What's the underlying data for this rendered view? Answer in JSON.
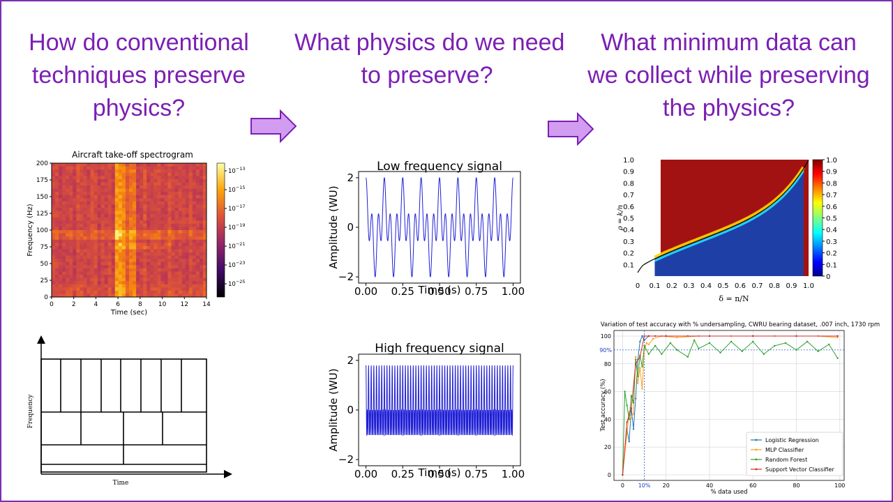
{
  "slide": {
    "question1": [
      "How do conventional",
      "techniques preserve",
      "physics?"
    ],
    "question2": [
      "What physics do we need",
      "to preserve?"
    ],
    "question3": [
      "What minimum data can",
      "we collect while preserving",
      "the physics?"
    ],
    "accent_color": "#7b1fb4",
    "arrow_color": "#d29cf0"
  },
  "spectrogram": {
    "title": "Aircraft take-off spectrogram",
    "xlabel": "Time (sec)",
    "ylabel": "Frequency (Hz)",
    "x_ticks": [
      "0",
      "2",
      "4",
      "6",
      "8",
      "10",
      "12",
      "14"
    ],
    "y_ticks": [
      "0",
      "25",
      "50",
      "75",
      "100",
      "125",
      "150",
      "175",
      "200"
    ],
    "colorbar_ticks": [
      "10",
      "10",
      "10",
      "10",
      "10",
      "10",
      "10"
    ],
    "colorbar_exponents": [
      "−13",
      "−15",
      "−17",
      "−19",
      "−21",
      "−23",
      "−25"
    ]
  },
  "tf_tiling": {
    "xlabel": "Time",
    "ylabel": "Frequency"
  },
  "low_signal": {
    "title": "Low frequency signal",
    "xlabel": "Time (s)",
    "ylabel": "Amplitude (WU)",
    "x_ticks": [
      "0.00",
      "0.25",
      "0.50",
      "0.75",
      "1.00"
    ],
    "y_ticks": [
      "2",
      "0",
      "−2"
    ]
  },
  "high_signal": {
    "title": "High frequency signal",
    "xlabel": "Time (s)",
    "ylabel": "Amplitude (WU)",
    "x_ticks": [
      "0.00",
      "0.25",
      "0.50",
      "0.75",
      "1.00"
    ],
    "y_ticks": [
      "2",
      "0",
      "−2"
    ]
  },
  "phase": {
    "ylabel": "ρ = k/n",
    "xlabel": "δ = n/N",
    "y_ticks": [
      "1.0",
      "0.9",
      "0.8",
      "0.7",
      "0.6",
      "0.5",
      "0.4",
      "0.3",
      "0.2",
      "0.1"
    ],
    "x_ticks": [
      "0",
      "0.1",
      "0.2",
      "0.3",
      "0.4",
      "0.5",
      "0.6",
      "0.7",
      "0.8",
      "0.9",
      "1.0"
    ],
    "colorbar_ticks": [
      "1.0",
      "0.9",
      "0.8",
      "0.7",
      "0.6",
      "0.5",
      "0.4",
      "0.3",
      "0.2",
      "0.1",
      "0"
    ]
  },
  "chart_data": [
    {
      "type": "line",
      "title": "Variation of test accuracy with % undersampling, CWRU bearing dataset, .007 inch, 1730 rpm",
      "xlabel": "% data used",
      "ylabel": "Test accuracy (%)",
      "xlim": [
        -4,
        102
      ],
      "ylim": [
        -4,
        104
      ],
      "x_ticks": [
        "0",
        "20",
        "40",
        "60",
        "80",
        "100"
      ],
      "y_ticks": [
        "0",
        "20",
        "40",
        "60",
        "80",
        "100"
      ],
      "grid": true,
      "legend_position": "bottom-right",
      "annotations": [
        {
          "label": "90%",
          "axis": "y",
          "value": 90
        },
        {
          "label": "10%",
          "axis": "x",
          "value": 10
        }
      ],
      "series": [
        {
          "name": "Logistic Regression",
          "color": "#1f77b4",
          "x": [
            0,
            2,
            3,
            4,
            5,
            6,
            7,
            8,
            9,
            10,
            12,
            15,
            20,
            30,
            40,
            60,
            80,
            99
          ],
          "y": [
            0,
            33,
            24,
            48,
            33,
            55,
            83,
            96,
            100,
            97,
            100,
            100,
            100,
            100,
            100,
            100,
            100,
            100
          ]
        },
        {
          "name": "MLP Classifier",
          "color": "#ff9f1c",
          "x": [
            0,
            2,
            3,
            4,
            5,
            6,
            7,
            8,
            9,
            10,
            11,
            12,
            14,
            18,
            25,
            35,
            50,
            70,
            90,
            99
          ],
          "y": [
            0,
            30,
            45,
            41,
            44,
            85,
            66,
            77,
            62,
            90,
            95,
            94,
            98,
            100,
            99,
            100,
            100,
            100,
            100,
            99
          ]
        },
        {
          "name": "Random Forest",
          "color": "#2ca02c",
          "x": [
            0,
            1,
            2,
            3,
            4,
            5,
            6,
            7,
            8,
            9,
            10,
            12,
            15,
            18,
            22,
            25,
            30,
            33,
            35,
            40,
            45,
            50,
            55,
            60,
            65,
            70,
            75,
            80,
            85,
            90,
            95,
            99
          ],
          "y": [
            0,
            60,
            50,
            40,
            57,
            52,
            83,
            71,
            86,
            78,
            93,
            87,
            93,
            87,
            95,
            90,
            85,
            97,
            91,
            95,
            88,
            96,
            89,
            96,
            87,
            93,
            95,
            90,
            96,
            89,
            94,
            84
          ]
        },
        {
          "name": "Support Vector Classifier",
          "color": "#d62728",
          "x": [
            0,
            2,
            4,
            6,
            8,
            10,
            12,
            20,
            40,
            60,
            80,
            99
          ],
          "y": [
            0,
            38,
            48,
            80,
            85,
            100,
            100,
            100,
            100,
            100,
            100,
            100
          ]
        }
      ]
    }
  ]
}
